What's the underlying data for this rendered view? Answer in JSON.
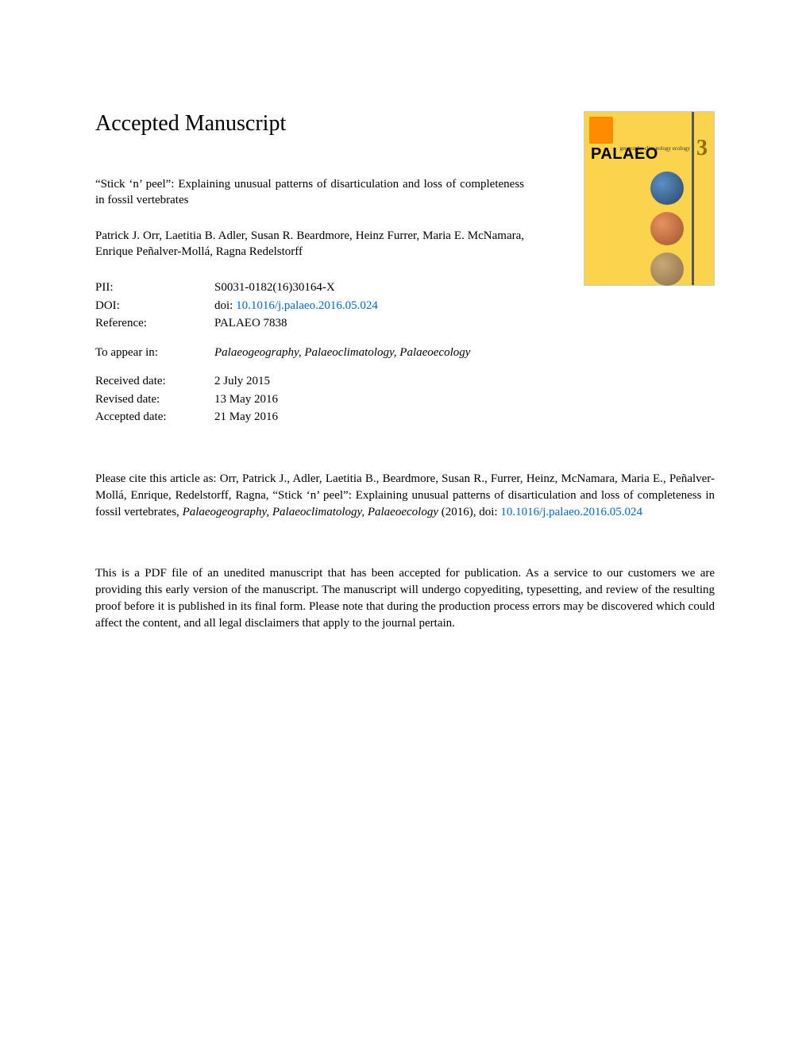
{
  "heading": "Accepted Manuscript",
  "cover": {
    "title": "PALAEO",
    "subtitle_lines": "geography\nclimatology\necology",
    "number": "3"
  },
  "title": "“Stick ‘n’ peel”: Explaining unusual patterns of disarticulation and loss of completeness in fossil vertebrates",
  "authors": "Patrick J. Orr, Laetitia B. Adler, Susan R. Beardmore, Heinz Furrer, Maria E. McNamara, Enrique Peñalver-Mollá, Ragna Redelstorff",
  "meta": {
    "pii_label": "PII:",
    "pii_value": "S0031-0182(16)30164-X",
    "doi_label": "DOI:",
    "doi_prefix": "doi: ",
    "doi_link": "10.1016/j.palaeo.2016.05.024",
    "ref_label": "Reference:",
    "ref_value": "PALAEO 7838",
    "appear_label": "To appear in:",
    "appear_value": "Palaeogeography, Palaeoclimatology, Palaeoecology",
    "received_label": "Received date:",
    "received_value": "2 July 2015",
    "revised_label": "Revised date:",
    "revised_value": "13 May 2016",
    "accepted_label": "Accepted date:",
    "accepted_value": "21 May 2016"
  },
  "citation": {
    "prefix": "Please cite this article as: Orr, Patrick J., Adler, Laetitia B., Beardmore, Susan R., Furrer, Heinz, McNamara, Maria E., Peñalver-Mollá, Enrique, Redelstorff, Ragna, “Stick ‘n’ peel”: Explaining unusual patterns of disarticulation and loss of completeness in fossil vertebrates, ",
    "journal_italic": "Palaeogeography, Palaeoclimatology, Palaeoecology",
    "year_doi": " (2016), doi: ",
    "doi_link": "10.1016/j.palaeo.2016.05.024"
  },
  "disclaimer": "This is a PDF file of an unedited manuscript that has been accepted for publication. As a service to our customers we are providing this early version of the manuscript. The manuscript will undergo copyediting, typesetting, and review of the resulting proof before it is published in its final form. Please note that during the production process errors may be discovered which could affect the content, and all legal disclaimers that apply to the journal pertain.",
  "colors": {
    "background": "#ffffff",
    "text": "#000000",
    "link": "#0066cc",
    "cover_bg": "#fcd34d"
  },
  "typography": {
    "heading_fontsize": 28,
    "body_fontsize": 15,
    "font_family": "Georgia, Times New Roman, serif"
  }
}
